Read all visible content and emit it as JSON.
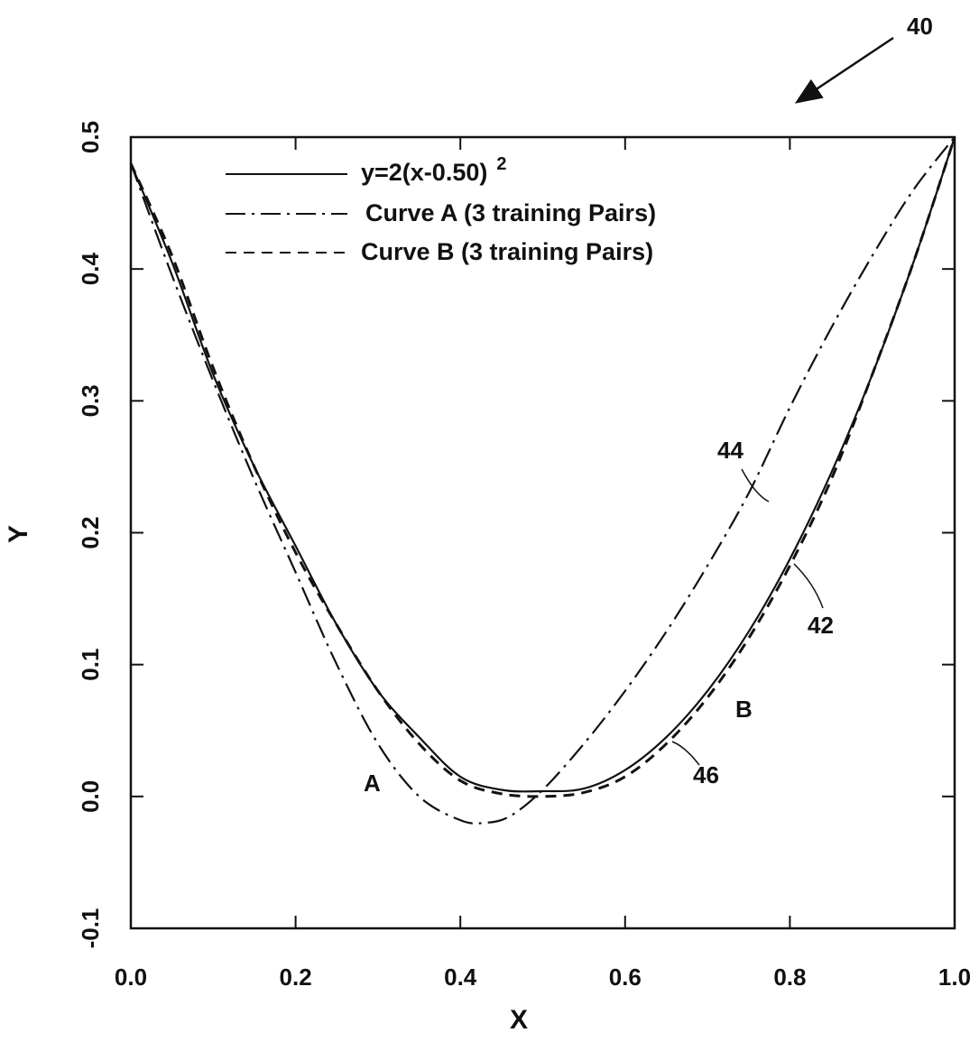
{
  "figure_ref": "40",
  "chart_data": {
    "type": "line",
    "xlabel": "X",
    "ylabel": "Y",
    "xlim": [
      0.0,
      1.0
    ],
    "ylim": [
      -0.1,
      0.5
    ],
    "grid": false,
    "legend_position": "top-left",
    "x_ticks": [
      0.0,
      0.2,
      0.4,
      0.6,
      0.8,
      1.0
    ],
    "x_tick_labels": [
      "0.0",
      "0.2",
      "0.4",
      "0.6",
      "0.8",
      "1.0"
    ],
    "y_ticks": [
      -0.1,
      0.0,
      0.1,
      0.2,
      0.3,
      0.4,
      0.5
    ],
    "y_tick_labels": [
      "-0.1",
      "0.0",
      "0.1",
      "0.2",
      "0.3",
      "0.4",
      "0.5"
    ],
    "series": [
      {
        "name": "y=2(x-0.50)",
        "name_superscript": "2",
        "style": "solid",
        "ref": "42",
        "x": [
          0.0,
          0.05,
          0.1,
          0.15,
          0.2,
          0.25,
          0.3,
          0.35,
          0.4,
          0.45,
          0.5,
          0.55,
          0.6,
          0.65,
          0.7,
          0.75,
          0.8,
          0.85,
          0.9,
          0.95,
          1.0
        ],
        "y": [
          0.48,
          0.405,
          0.32,
          0.25,
          0.19,
          0.13,
          0.08,
          0.045,
          0.015,
          0.005,
          0.004,
          0.006,
          0.02,
          0.045,
          0.08,
          0.125,
          0.18,
          0.245,
          0.32,
          0.405,
          0.5
        ]
      },
      {
        "name": "Curve A (3 training Pairs)",
        "style": "dashdot",
        "label": "A",
        "ref": "44",
        "x": [
          0.0,
          0.05,
          0.1,
          0.15,
          0.2,
          0.25,
          0.3,
          0.35,
          0.4,
          0.43,
          0.46,
          0.5,
          0.55,
          0.6,
          0.65,
          0.7,
          0.75,
          0.8,
          0.85,
          0.9,
          0.95,
          1.0
        ],
        "y": [
          0.48,
          0.395,
          0.315,
          0.24,
          0.17,
          0.1,
          0.04,
          0.0,
          -0.018,
          -0.02,
          -0.015,
          0.005,
          0.04,
          0.08,
          0.125,
          0.175,
          0.23,
          0.295,
          0.355,
          0.41,
          0.46,
          0.5
        ]
      },
      {
        "name": "Curve B (3 training Pairs)",
        "style": "dashed",
        "label": "B",
        "ref": "46",
        "x": [
          0.0,
          0.05,
          0.1,
          0.15,
          0.2,
          0.25,
          0.3,
          0.35,
          0.4,
          0.45,
          0.5,
          0.55,
          0.6,
          0.65,
          0.7,
          0.75,
          0.8,
          0.85,
          0.9,
          0.95,
          1.0
        ],
        "y": [
          0.48,
          0.41,
          0.325,
          0.25,
          0.185,
          0.13,
          0.08,
          0.04,
          0.012,
          0.002,
          0.0,
          0.003,
          0.015,
          0.04,
          0.075,
          0.12,
          0.175,
          0.24,
          0.32,
          0.405,
          0.5
        ]
      }
    ],
    "annotations": [
      {
        "text": "44",
        "x": 0.74,
        "y": 0.262
      },
      {
        "text": "42",
        "x": 0.84,
        "y": 0.128
      },
      {
        "text": "B",
        "x": 0.737,
        "y": 0.065
      },
      {
        "text": "46",
        "x": 0.705,
        "y": 0.013
      },
      {
        "text": "A",
        "x": 0.296,
        "y": 0.006
      }
    ]
  }
}
